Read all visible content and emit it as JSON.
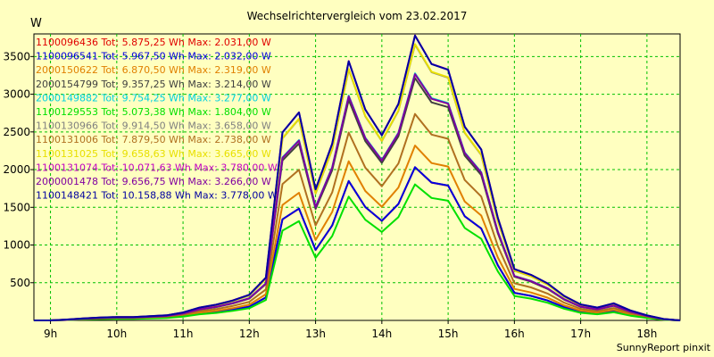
{
  "chart_data": {
    "type": "line",
    "title": "Wechselrichtervergleich vom 23.02.2017",
    "ylabel": "W",
    "xlabel": "",
    "footer": "SunnyReport pinxit",
    "xlim": [
      8.75,
      18.5
    ],
    "ylim": [
      0,
      3800
    ],
    "grid": true,
    "legend_placement": "top-left",
    "x_ticks": [
      9,
      10,
      11,
      12,
      13,
      14,
      15,
      16,
      17,
      18
    ],
    "x_tick_labels": [
      "9h",
      "10h",
      "11h",
      "12h",
      "13h",
      "14h",
      "15h",
      "16h",
      "17h",
      "18h"
    ],
    "y_ticks": [
      500,
      1000,
      1500,
      2000,
      2500,
      3000,
      3500
    ],
    "y_tick_labels": [
      "500",
      "1000",
      "1500",
      "2000",
      "2500",
      "3000",
      "3500"
    ],
    "x": [
      8.75,
      9.0,
      9.25,
      9.5,
      9.75,
      10.0,
      10.25,
      10.5,
      10.75,
      11.0,
      11.25,
      11.5,
      11.75,
      12.0,
      12.25,
      12.5,
      12.75,
      13.0,
      13.25,
      13.5,
      13.75,
      14.0,
      14.25,
      14.5,
      14.75,
      15.0,
      15.25,
      15.5,
      15.75,
      16.0,
      16.25,
      16.5,
      16.75,
      17.0,
      17.25,
      17.5,
      17.75,
      18.0,
      18.25,
      18.5
    ],
    "base_profile": [
      0.0,
      0.0,
      0.003,
      0.007,
      0.01,
      0.012,
      0.012,
      0.015,
      0.018,
      0.028,
      0.045,
      0.055,
      0.07,
      0.09,
      0.15,
      0.66,
      0.73,
      0.46,
      0.62,
      0.91,
      0.74,
      0.65,
      0.76,
      1.0,
      0.9,
      0.88,
      0.68,
      0.6,
      0.36,
      0.18,
      0.16,
      0.13,
      0.086,
      0.056,
      0.045,
      0.06,
      0.035,
      0.018,
      0.005,
      0.0
    ],
    "series": [
      {
        "name": "1100096436",
        "label": "1100096436 Tot: 5.875,25 Wh Max: 2.031,00 W",
        "color": "#e00000",
        "peak": 2031
      },
      {
        "name": "1100096541",
        "label": "1100096541 Tot: 5.967,50 Wh Max: 2.032,00 W",
        "color": "#0000e0",
        "peak": 2032
      },
      {
        "name": "2000150622",
        "label": "2000150622 Tot: 6.870,50 Wh Max: 2.319,00 W",
        "color": "#e08000",
        "peak": 2319
      },
      {
        "name": "2000154799",
        "label": "2000154799 Tot: 9.357,25 Wh Max: 3.214,00 W",
        "color": "#404040",
        "peak": 3214
      },
      {
        "name": "2000149882",
        "label": "2000149882 Tot: 9.754,25 Wh Max: 3.277,00 W",
        "color": "#00d0e0",
        "peak": 3277
      },
      {
        "name": "1100129553",
        "label": "1100129553 Tot: 5.073,38 Wh Max: 1.804,00 W",
        "color": "#00e000",
        "peak": 1804
      },
      {
        "name": "1100130966",
        "label": "1100130966 Tot: 9.914,50 Wh Max: 3.658,00 W",
        "color": "#808080",
        "peak": 3658
      },
      {
        "name": "1100131006",
        "label": "1100131006 Tot: 7.879,50 Wh Max: 2.738,00 W",
        "color": "#b07020",
        "peak": 2738
      },
      {
        "name": "1100131025",
        "label": "1100131025 Tot: 9.658,63 Wh Max: 3.665,00 W",
        "color": "#e8e000",
        "peak": 3665
      },
      {
        "name": "1100131074",
        "label": "1100131074 Tot: 10.071,63 Wh Max: 3.780,00 W",
        "color": "#c000c0",
        "peak": 3780
      },
      {
        "name": "2000001478",
        "label": "2000001478 Tot: 9.656,75 Wh Max: 3.266,00 W",
        "color": "#8000a0",
        "peak": 3266
      },
      {
        "name": "1100148421",
        "label": "1100148421 Tot: 10.158,88 Wh Max: 3.778,00 W",
        "color": "#0000a0",
        "peak": 3778
      }
    ]
  }
}
